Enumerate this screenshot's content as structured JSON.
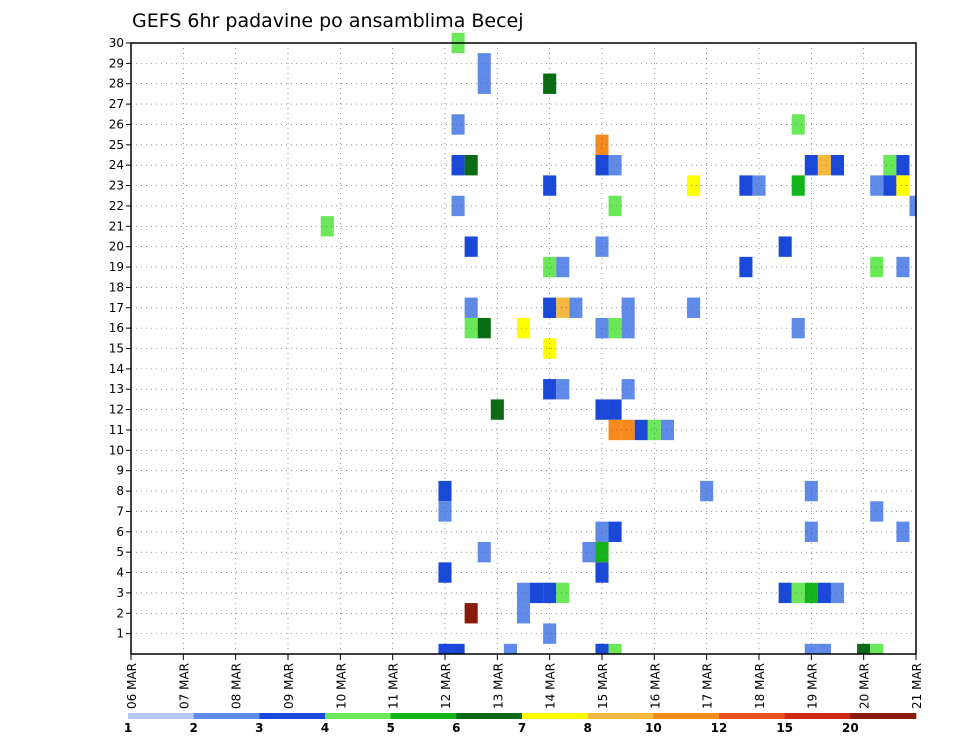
{
  "chart_data": {
    "type": "heatmap",
    "title": "GEFS 6hr padavine po ansamblima Becej",
    "x_ticks": [
      "06 MAR",
      "07 MAR",
      "08 MAR",
      "09 MAR",
      "10 MAR",
      "11 MAR",
      "12 MAR",
      "13 MAR",
      "14 MAR",
      "15 MAR",
      "16 MAR",
      "17 MAR",
      "18 MAR",
      "19 MAR",
      "20 MAR",
      "21 MAR"
    ],
    "y_ticks": [
      "1",
      "2",
      "3",
      "4",
      "5",
      "6",
      "7",
      "8",
      "9",
      "10",
      "11",
      "12",
      "13",
      "14",
      "15",
      "16",
      "17",
      "18",
      "19",
      "20",
      "21",
      "22",
      "23",
      "24",
      "25",
      "26",
      "27",
      "28",
      "29",
      "30"
    ],
    "xlim": [
      0,
      60
    ],
    "ylim": [
      0,
      30
    ],
    "grid": true,
    "colorbar": {
      "labels": [
        "1",
        "2",
        "3",
        "4",
        "5",
        "6",
        "7",
        "8",
        "10",
        "12",
        "15",
        "20"
      ],
      "colors": [
        "#b3c8f5",
        "#5f8ae8",
        "#1a48d8",
        "#6ae85a",
        "#13b51b",
        "#0a6b14",
        "#ffff00",
        "#f5b942",
        "#f58a1f",
        "#e8501f",
        "#cc2a14",
        "#8a1a0a"
      ]
    },
    "cells": [
      [
        25,
        30,
        3
      ],
      [
        27,
        29,
        1
      ],
      [
        27,
        28,
        1
      ],
      [
        32,
        28,
        5
      ],
      [
        25,
        26,
        1
      ],
      [
        51,
        26,
        3
      ],
      [
        36,
        25,
        8
      ],
      [
        25,
        24,
        2
      ],
      [
        26,
        24,
        5
      ],
      [
        36,
        24,
        2
      ],
      [
        37,
        24,
        1
      ],
      [
        52,
        24,
        2
      ],
      [
        53,
        24,
        7
      ],
      [
        54,
        24,
        2
      ],
      [
        58,
        24,
        3
      ],
      [
        59,
        24,
        2
      ],
      [
        32,
        23,
        2
      ],
      [
        43,
        23,
        6
      ],
      [
        47,
        23,
        2
      ],
      [
        48,
        23,
        1
      ],
      [
        51,
        23,
        4
      ],
      [
        57,
        23,
        1
      ],
      [
        58,
        23,
        2
      ],
      [
        59,
        23,
        6
      ],
      [
        25,
        22,
        1
      ],
      [
        37,
        22,
        3
      ],
      [
        60,
        22,
        1
      ],
      [
        15,
        21,
        3
      ],
      [
        26,
        20,
        2
      ],
      [
        36,
        20,
        1
      ],
      [
        50,
        20,
        2
      ],
      [
        32,
        19,
        3
      ],
      [
        33,
        19,
        1
      ],
      [
        47,
        19,
        2
      ],
      [
        57,
        19,
        3
      ],
      [
        59,
        19,
        1
      ],
      [
        26,
        17,
        1
      ],
      [
        32,
        17,
        2
      ],
      [
        33,
        17,
        7
      ],
      [
        34,
        17,
        1
      ],
      [
        38,
        17,
        1
      ],
      [
        43,
        17,
        1
      ],
      [
        26,
        16,
        3
      ],
      [
        27,
        16,
        5
      ],
      [
        30,
        16,
        6
      ],
      [
        36,
        16,
        1
      ],
      [
        37,
        16,
        3
      ],
      [
        38,
        16,
        1
      ],
      [
        51,
        16,
        1
      ],
      [
        32,
        15,
        6
      ],
      [
        32,
        13,
        2
      ],
      [
        33,
        13,
        1
      ],
      [
        38,
        13,
        1
      ],
      [
        28,
        12,
        5
      ],
      [
        36,
        12,
        2
      ],
      [
        37,
        12,
        2
      ],
      [
        37,
        11,
        8
      ],
      [
        38,
        11,
        8
      ],
      [
        39,
        11,
        2
      ],
      [
        40,
        11,
        3
      ],
      [
        41,
        11,
        1
      ],
      [
        24,
        8,
        2
      ],
      [
        44,
        8,
        1
      ],
      [
        52,
        8,
        1
      ],
      [
        24,
        7,
        1
      ],
      [
        57,
        7,
        1
      ],
      [
        36,
        6,
        1
      ],
      [
        37,
        6,
        2
      ],
      [
        52,
        6,
        1
      ],
      [
        59,
        6,
        1
      ],
      [
        27,
        5,
        1
      ],
      [
        35,
        5,
        1
      ],
      [
        36,
        5,
        4
      ],
      [
        24,
        4,
        2
      ],
      [
        36,
        4,
        2
      ],
      [
        30,
        3,
        1
      ],
      [
        31,
        3,
        2
      ],
      [
        32,
        3,
        2
      ],
      [
        33,
        3,
        3
      ],
      [
        50,
        3,
        2
      ],
      [
        51,
        3,
        3
      ],
      [
        52,
        3,
        4
      ],
      [
        53,
        3,
        2
      ],
      [
        54,
        3,
        1
      ],
      [
        26,
        2,
        11
      ],
      [
        30,
        2,
        1
      ],
      [
        32,
        1,
        1
      ],
      [
        24,
        0,
        2
      ],
      [
        25,
        0,
        2
      ],
      [
        29,
        0,
        1
      ],
      [
        36,
        0,
        2
      ],
      [
        37,
        0,
        3
      ],
      [
        52,
        0,
        1
      ],
      [
        53,
        0,
        1
      ],
      [
        56,
        0,
        5
      ],
      [
        57,
        0,
        3
      ]
    ]
  }
}
